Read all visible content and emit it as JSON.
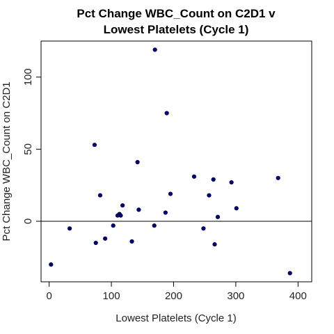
{
  "chart_data": {
    "type": "scatter",
    "title_line1": "Pct Change WBC_Count on C2D1 v",
    "title_line2": "Lowest Platelets (Cycle 1)",
    "xlabel": "Lowest Platelets (Cycle 1)",
    "ylabel": "Pct Change WBC_Count on C2D1",
    "xlim": [
      -13,
      422
    ],
    "ylim": [
      -42,
      125
    ],
    "xticks": [
      0,
      100,
      200,
      300,
      400
    ],
    "yticks": [
      0,
      50,
      100
    ],
    "reference_line_y": 0,
    "point_color": "#00008B",
    "points": [
      {
        "x": 3,
        "y": -30
      },
      {
        "x": 33,
        "y": -5
      },
      {
        "x": 73,
        "y": 53
      },
      {
        "x": 75,
        "y": -15
      },
      {
        "x": 82,
        "y": 18
      },
      {
        "x": 90,
        "y": -12
      },
      {
        "x": 103,
        "y": -3
      },
      {
        "x": 110,
        "y": 4
      },
      {
        "x": 113,
        "y": 5
      },
      {
        "x": 115,
        "y": 4
      },
      {
        "x": 118,
        "y": 11
      },
      {
        "x": 133,
        "y": -14
      },
      {
        "x": 142,
        "y": 41
      },
      {
        "x": 144,
        "y": 8
      },
      {
        "x": 169,
        "y": -3
      },
      {
        "x": 170,
        "y": 119
      },
      {
        "x": 187,
        "y": 6
      },
      {
        "x": 189,
        "y": 75
      },
      {
        "x": 195,
        "y": 19
      },
      {
        "x": 233,
        "y": 31
      },
      {
        "x": 248,
        "y": -5
      },
      {
        "x": 257,
        "y": 18
      },
      {
        "x": 264,
        "y": 29
      },
      {
        "x": 266,
        "y": -16
      },
      {
        "x": 271,
        "y": 3
      },
      {
        "x": 293,
        "y": 27
      },
      {
        "x": 301,
        "y": 9
      },
      {
        "x": 368,
        "y": 30
      },
      {
        "x": 387,
        "y": -36
      }
    ]
  }
}
